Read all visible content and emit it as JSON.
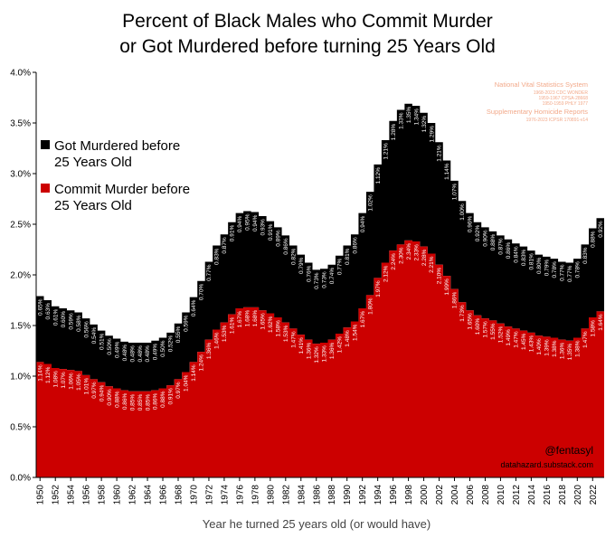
{
  "chart_data": {
    "type": "area",
    "title_lines": [
      "Percent of Black Males who Commit Murder",
      "or Got Murdered before turning 25 Years Old"
    ],
    "xlabel": "Year he turned 25 years old (or would have)",
    "ylabel": "",
    "ylim": [
      0,
      4
    ],
    "y_ticks": [
      "0.0%",
      "0.5%",
      "1.0%",
      "1.5%",
      "2.0%",
      "2.5%",
      "3.0%",
      "3.5%",
      "4.0%"
    ],
    "x_tick_labels": [
      "1950",
      "1952",
      "1954",
      "1956",
      "1958",
      "1960",
      "1962",
      "1964",
      "1966",
      "1968",
      "1970",
      "1972",
      "1974",
      "1976",
      "1978",
      "1980",
      "1982",
      "1984",
      "1986",
      "1988",
      "1990",
      "1992",
      "1994",
      "1996",
      "1998",
      "2000",
      "2002",
      "2004",
      "2006",
      "2008",
      "2010",
      "2012",
      "2014",
      "2016",
      "2018",
      "2020",
      "2022"
    ],
    "legend_position": "left",
    "x": [
      1950,
      1951,
      1952,
      1953,
      1954,
      1955,
      1956,
      1957,
      1958,
      1959,
      1960,
      1961,
      1962,
      1963,
      1964,
      1965,
      1966,
      1967,
      1968,
      1969,
      1970,
      1971,
      1972,
      1973,
      1974,
      1975,
      1976,
      1977,
      1978,
      1979,
      1980,
      1981,
      1982,
      1983,
      1984,
      1985,
      1986,
      1987,
      1988,
      1989,
      1990,
      1991,
      1992,
      1993,
      1994,
      1995,
      1996,
      1997,
      1998,
      1999,
      2000,
      2001,
      2002,
      2003,
      2004,
      2005,
      2006,
      2007,
      2008,
      2009,
      2010,
      2011,
      2012,
      2013,
      2014,
      2015,
      2016,
      2017,
      2018,
      2019,
      2020,
      2021,
      2022,
      2023
    ],
    "series": [
      {
        "name": "Commit Murder before 25 Years Old",
        "color": "#cc0000",
        "values": [
          1.14,
          1.12,
          1.08,
          1.07,
          1.06,
          1.05,
          1.01,
          0.97,
          0.94,
          0.9,
          0.88,
          0.86,
          0.85,
          0.85,
          0.85,
          0.86,
          0.88,
          0.91,
          0.97,
          1.04,
          1.14,
          1.24,
          1.36,
          1.46,
          1.53,
          1.61,
          1.67,
          1.68,
          1.68,
          1.65,
          1.62,
          1.58,
          1.53,
          1.47,
          1.41,
          1.36,
          1.32,
          1.33,
          1.36,
          1.42,
          1.48,
          1.54,
          1.67,
          1.8,
          1.97,
          2.12,
          2.24,
          2.3,
          2.34,
          2.33,
          2.28,
          2.21,
          2.1,
          1.99,
          1.86,
          1.73,
          1.65,
          1.6,
          1.57,
          1.55,
          1.52,
          1.49,
          1.47,
          1.45,
          1.43,
          1.4,
          1.39,
          1.38,
          1.36,
          1.35,
          1.38,
          1.47,
          1.58,
          1.64
        ],
        "labels": [
          "1.14%",
          "1.12%",
          "1.08%",
          "1.07%",
          "1.06%",
          "1.05%",
          "1.01%",
          "0.97%",
          "0.94%",
          "0.90%",
          "0.88%",
          "0.86%",
          "0.85%",
          "0.85%",
          "0.85%",
          "0.86%",
          "0.88%",
          "0.91%",
          "0.97%",
          "1.04%",
          "1.14%",
          "1.24%",
          "1.36%",
          "1.46%",
          "1.53%",
          "1.61%",
          "1.67%",
          "1.68%",
          "1.68%",
          "1.65%",
          "1.62%",
          "1.58%",
          "1.53%",
          "1.47%",
          "1.41%",
          "1.36%",
          "1.32%",
          "1.33%",
          "1.36%",
          "1.42%",
          "1.48%",
          "1.54%",
          "1.67%",
          "1.80%",
          "1.97%",
          "2.12%",
          "2.24%",
          "2.30%",
          "2.34%",
          "2.33%",
          "2.28%",
          "2.21%",
          "2.10%",
          "1.99%",
          "1.86%",
          "1.73%",
          "1.65%",
          "1.60%",
          "1.57%",
          "1.55%",
          "1.52%",
          "1.49%",
          "1.47%",
          "1.45%",
          "1.43%",
          "1.40%",
          "1.39%",
          "1.38%",
          "1.36%",
          "1.35%",
          "1.38%",
          "1.47%",
          "1.58%",
          "1.64%"
        ]
      },
      {
        "name": "Got Murdered before 25 Years Old",
        "color": "#000000",
        "values": [
          0.65,
          0.63,
          0.61,
          0.6,
          0.59,
          0.58,
          0.56,
          0.54,
          0.51,
          0.5,
          0.49,
          0.48,
          0.48,
          0.48,
          0.48,
          0.49,
          0.5,
          0.52,
          0.55,
          0.59,
          0.64,
          0.7,
          0.77,
          0.83,
          0.87,
          0.91,
          0.94,
          0.95,
          0.94,
          0.93,
          0.91,
          0.89,
          0.86,
          0.82,
          0.79,
          0.76,
          0.73,
          0.73,
          0.74,
          0.77,
          0.81,
          0.86,
          0.94,
          1.02,
          1.12,
          1.21,
          1.28,
          1.33,
          1.35,
          1.34,
          1.32,
          1.29,
          1.21,
          1.14,
          1.07,
          1.0,
          0.96,
          0.92,
          0.9,
          0.88,
          0.87,
          0.86,
          0.84,
          0.83,
          0.81,
          0.8,
          0.79,
          0.78,
          0.77,
          0.77,
          0.78,
          0.83,
          0.88,
          0.92
        ],
        "labels": [
          "0.65%",
          "0.63%",
          "0.61%",
          "0.60%",
          "0.59%",
          "0.58%",
          "0.56%",
          "0.54%",
          "0.51%",
          "0.50%",
          "0.49%",
          "0.48%",
          "0.48%",
          "0.48%",
          "0.48%",
          "0.49%",
          "0.50%",
          "0.52%",
          "0.55%",
          "0.59%",
          "0.64%",
          "0.70%",
          "0.77%",
          "0.83%",
          "0.87%",
          "0.91%",
          "0.94%",
          "0.95%",
          "0.94%",
          "0.93%",
          "0.91%",
          "0.89%",
          "0.86%",
          "0.82%",
          "0.79%",
          "0.76%",
          "0.73%",
          "0.73%",
          "0.74%",
          "0.77%",
          "0.81%",
          "0.86%",
          "0.94%",
          "1.02%",
          "1.12%",
          "1.21%",
          "1.28%",
          "1.33%",
          "1.35%",
          "1.34%",
          "1.32%",
          "1.29%",
          "1.21%",
          "1.14%",
          "1.07%",
          "1.00%",
          "0.96%",
          "0.92%",
          "0.90%",
          "0.88%",
          "0.87%",
          "0.86%",
          "0.84%",
          "0.83%",
          "0.81%",
          "0.80%",
          "0.79%",
          "0.78%",
          "0.77%",
          "0.77%",
          "0.78%",
          "0.83%",
          "0.88%",
          "0.92%"
        ]
      }
    ],
    "legend": {
      "murdered_lines": [
        "Got Murdered before",
        "25 Years Old"
      ],
      "commit_lines": [
        "Commit Murder before",
        "25 Years Old"
      ]
    },
    "sources": {
      "vital_title": "National Vital Statistics System",
      "vital_lines": [
        "1968-2023 CDC WONDER",
        "1959-1967 CPSA-28668",
        "1950-1959 PHLY 1977"
      ],
      "shr_title": "Supplementary Homicide Reports",
      "shr_lines": [
        "1976-2023 ICPSR 170891-v14"
      ]
    },
    "credit": {
      "handle": "@fentasyl",
      "site": "datahazard.substack.com"
    },
    "colors": {
      "commit": "#cc0000",
      "murdered": "#000000",
      "source_text": "#f2a98a"
    }
  }
}
